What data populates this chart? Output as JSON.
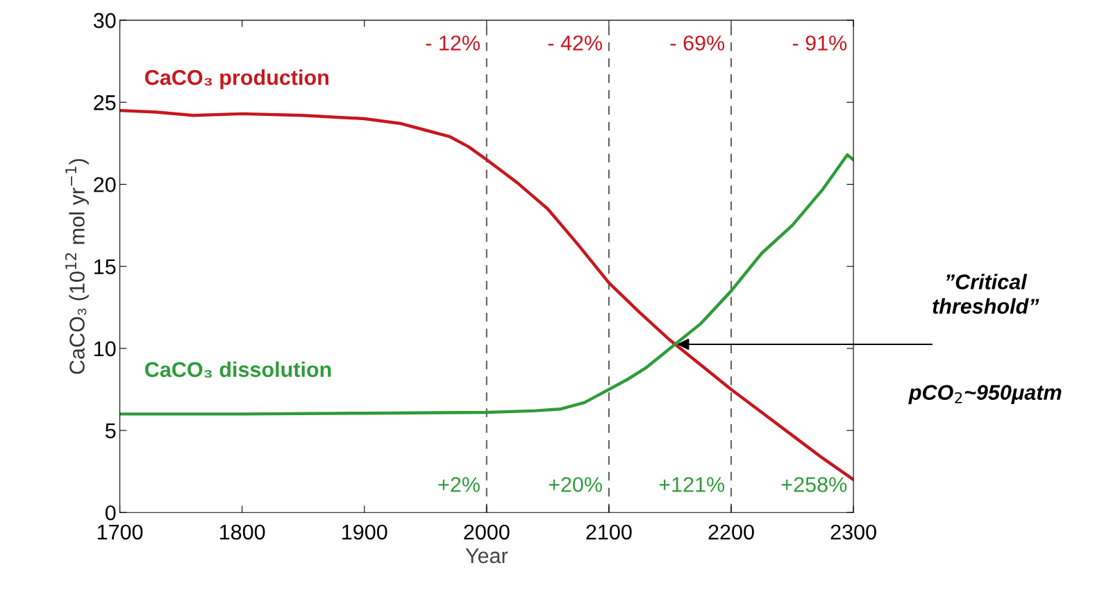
{
  "chart_data": {
    "type": "line",
    "xlabel": "Year",
    "ylabel": "CaCO₃ (10$^{12}$ mol yr$^{−1}$)",
    "xlim": [
      1700,
      2300
    ],
    "xticks": [
      1700,
      1800,
      1900,
      2000,
      2100,
      2200,
      2300
    ],
    "ylim": [
      0,
      30
    ],
    "yticks": [
      0,
      5,
      10,
      15,
      20,
      25,
      30
    ],
    "grid": false,
    "line_style": "solid",
    "marker": "none",
    "series": [
      {
        "name": "CaCO₃ production",
        "color": "#c8161d",
        "x": [
          1700,
          1730,
          1760,
          1800,
          1850,
          1900,
          1930,
          1950,
          1970,
          1985,
          2000,
          2025,
          2050,
          2075,
          2100,
          2125,
          2150,
          2175,
          2200,
          2225,
          2250,
          2275,
          2300
        ],
        "values": [
          24.5,
          24.4,
          24.2,
          24.3,
          24.2,
          24.0,
          23.7,
          23.3,
          22.9,
          22.3,
          21.5,
          20.1,
          18.5,
          16.3,
          14.0,
          12.2,
          10.5,
          9.0,
          7.5,
          6.1,
          4.7,
          3.3,
          2.0
        ]
      },
      {
        "name": "CaCO₃ dissolution",
        "color": "#2e9b3a",
        "x": [
          1700,
          1800,
          1900,
          2000,
          2040,
          2060,
          2070,
          2080,
          2090,
          2100,
          2115,
          2130,
          2150,
          2175,
          2200,
          2225,
          2250,
          2275,
          2295,
          2300
        ],
        "values": [
          6.0,
          6.0,
          6.05,
          6.1,
          6.2,
          6.3,
          6.5,
          6.7,
          7.1,
          7.5,
          8.1,
          8.8,
          10.0,
          11.5,
          13.5,
          15.8,
          17.5,
          19.7,
          21.8,
          21.5
        ]
      }
    ],
    "ref_lines": [
      {
        "axis": "x",
        "value": 2000,
        "color": "#606060",
        "line_style": "dashed"
      },
      {
        "axis": "x",
        "value": 2100,
        "color": "#606060",
        "line_style": "dashed"
      },
      {
        "axis": "x",
        "value": 2200,
        "color": "#606060",
        "line_style": "dashed"
      }
    ],
    "annotations": [
      "- 12%",
      "- 42%",
      "- 69%",
      "- 91%",
      "+2%",
      "+20%",
      "+121%",
      "+258%",
      "”Critical\nthreshold”",
      "pCO$_{2}$~950μatm"
    ]
  }
}
